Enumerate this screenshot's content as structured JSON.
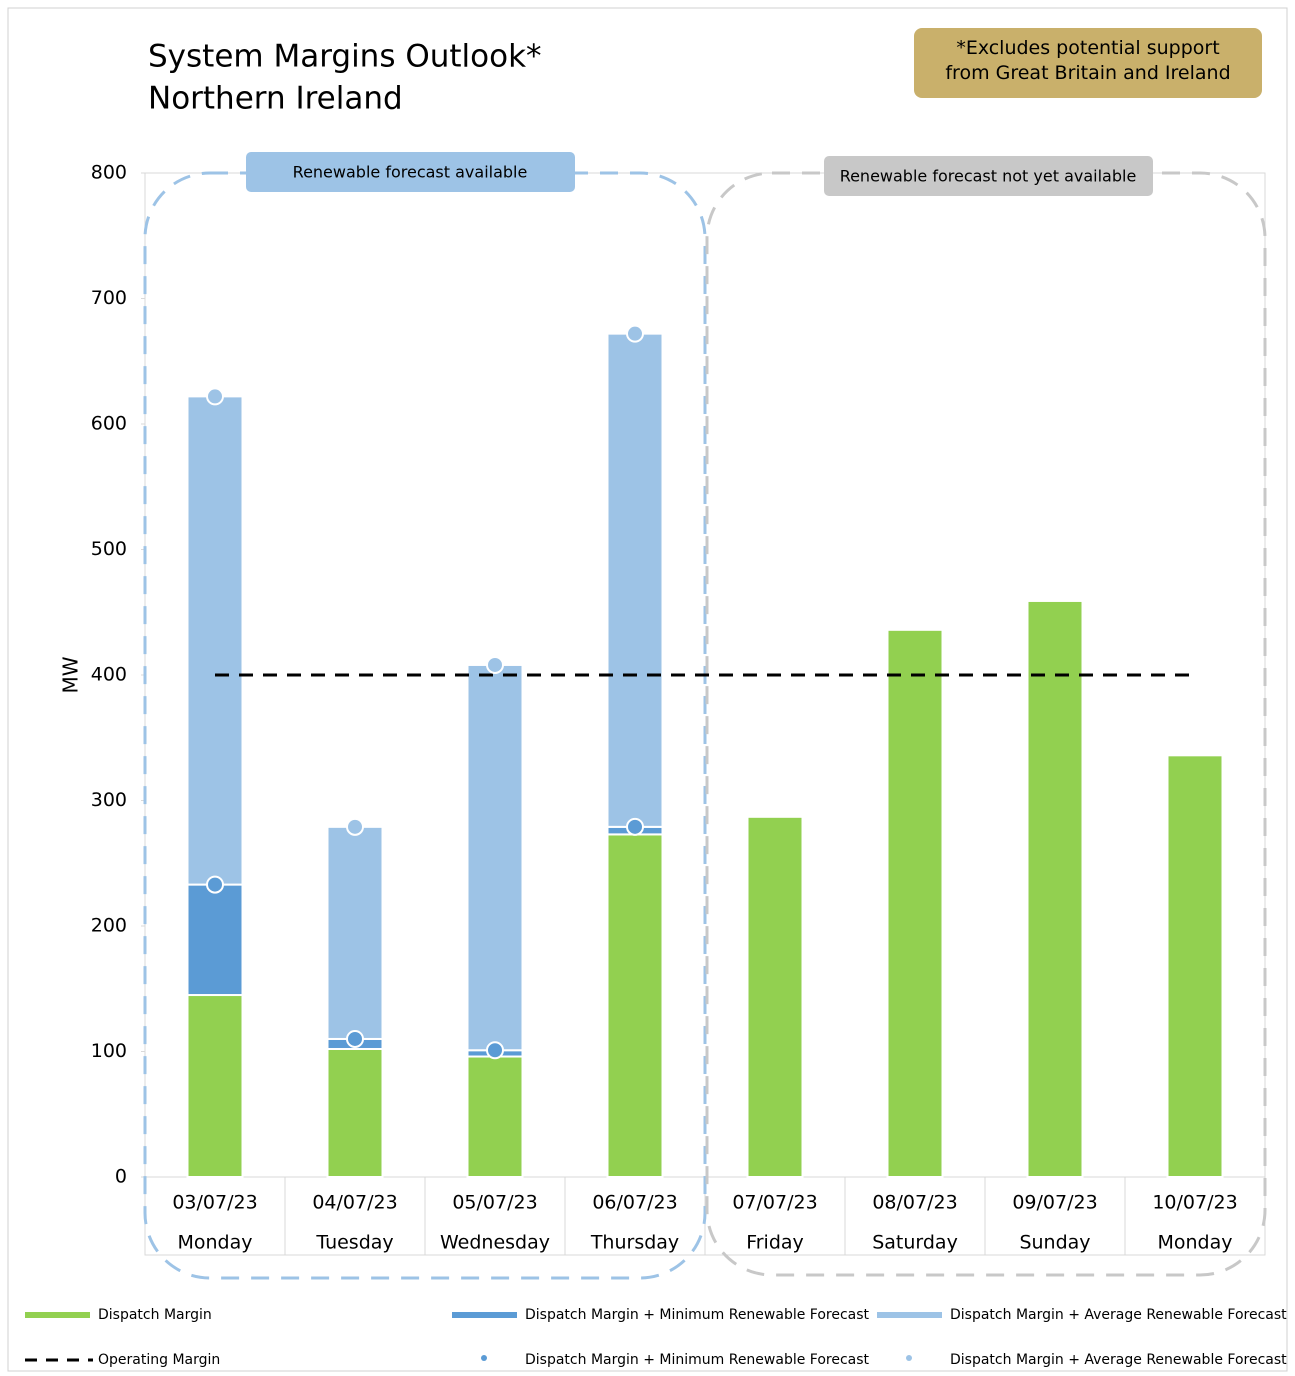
{
  "chart_data": {
    "type": "bar",
    "stacked": true,
    "title": "System Margins Outlook*",
    "subtitle": "Northern Ireland",
    "note": "*Excludes potential support from Great Britain and Ireland",
    "annotations": [
      "Renewable forecast available",
      "Renewable forecast not yet available"
    ],
    "y_label": "MW",
    "categories": [
      "03/07/23",
      "04/07/23",
      "05/07/23",
      "06/07/23",
      "07/07/23",
      "08/07/23",
      "09/07/23",
      "10/07/23"
    ],
    "weekdays": [
      "Monday",
      "Tuesday",
      "Wednesday",
      "Thursday",
      "Friday",
      "Saturday",
      "Sunday",
      "Monday"
    ],
    "ylim": [
      0,
      800
    ],
    "yticks": [
      0,
      100,
      200,
      300,
      400,
      500,
      600,
      700,
      800
    ],
    "series": [
      {
        "name": "Dispatch Margin",
        "type": "bar",
        "color": "#92d050",
        "values": [
          145,
          102,
          96,
          273,
          287,
          436,
          459,
          336
        ]
      },
      {
        "name": "Dispatch Margin + Minimum Renewable Forecast",
        "type": "bar",
        "color": "#5b9bd5",
        "values": [
          88,
          8,
          5,
          6,
          null,
          null,
          null,
          null
        ]
      },
      {
        "name": "Dispatch Margin + Average Renewable Forecast",
        "type": "bar",
        "color": "#9dc3e6",
        "values": [
          389,
          169,
          307,
          393,
          null,
          null,
          null,
          null
        ]
      },
      {
        "name": "Operating Margin",
        "type": "line",
        "color": "#000000",
        "dashed": true,
        "values": [
          400,
          400,
          400,
          400,
          400,
          400,
          400,
          400
        ]
      },
      {
        "name": "Dispatch Margin + Minimum Renewable Forecast",
        "type": "scatter",
        "color": "#5b9bd5",
        "values": [
          233,
          110,
          101,
          279,
          null,
          null,
          null,
          null
        ]
      },
      {
        "name": "Dispatch Margin + Average Renewable Forecast",
        "type": "scatter",
        "color": "#9dc3e6",
        "values": [
          622,
          279,
          408,
          672,
          null,
          null,
          null,
          null
        ]
      }
    ]
  }
}
